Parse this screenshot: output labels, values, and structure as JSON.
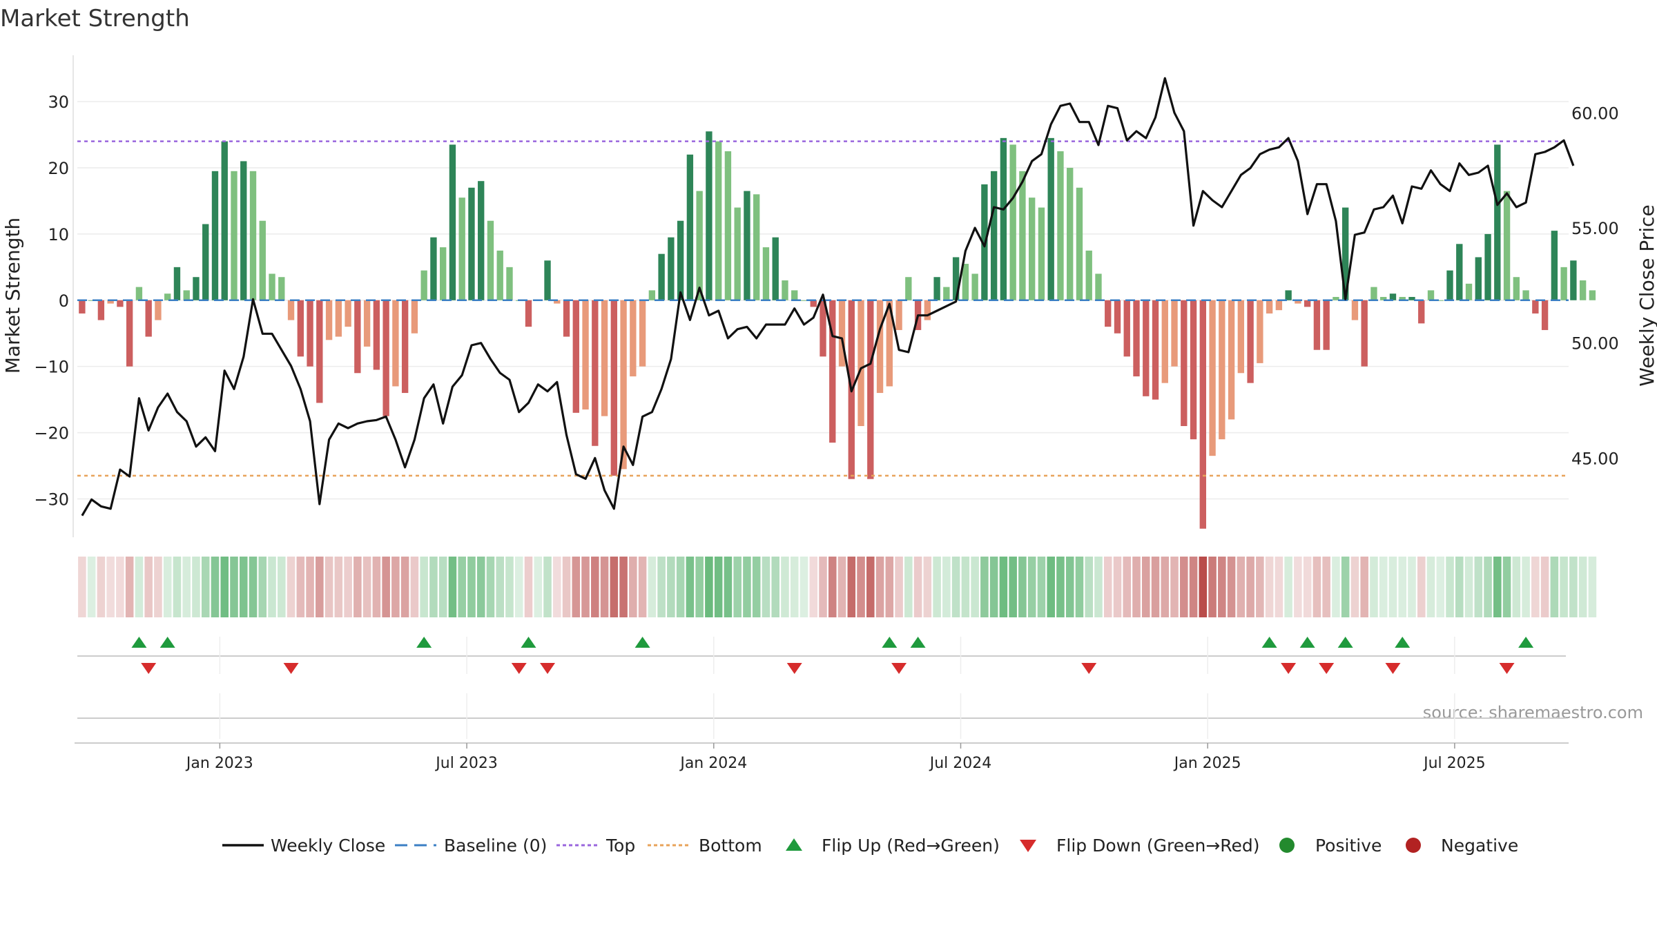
{
  "chart_data": {
    "type": "bar",
    "title": "Market Strength",
    "ylabel_left": "Market Strength",
    "ylabel_right": "Weekly Close Price",
    "left_ylim": [
      -36,
      37
    ],
    "right_ylim": [
      41.5,
      62.5
    ],
    "left_ticks": [
      30,
      20,
      10,
      0,
      -10,
      -20,
      -30
    ],
    "left_tick_labels": [
      "30",
      "20",
      "10",
      "0",
      "−10",
      "−20",
      "−30"
    ],
    "right_ticks": [
      60,
      55,
      50,
      45
    ],
    "right_tick_labels": [
      "60.00",
      "55.00",
      "50.00",
      "45.00"
    ],
    "x_tick_labels": [
      "Jan 2023",
      "Jul 2023",
      "Jan 2024",
      "Jul 2024",
      "Jan 2025",
      "Jul 2025"
    ],
    "x_tick_weeks": [
      14.5,
      40.5,
      66.5,
      92.5,
      118.5,
      144.5
    ],
    "top_level": 24,
    "bottom_level": -26.5,
    "weeks": 157,
    "strength": [
      -2,
      0,
      -3,
      -0.5,
      -1,
      -10,
      2,
      -5.5,
      -3,
      1,
      5,
      1.5,
      3.5,
      11.5,
      19.5,
      24,
      19.5,
      21,
      19.5,
      12,
      4,
      3.5,
      -3,
      -8.5,
      -10,
      -15.5,
      -6,
      -5.5,
      -4,
      -11,
      -7,
      -10.5,
      -17.5,
      -13,
      -14,
      -5,
      4.5,
      9.5,
      8,
      23.5,
      15.5,
      17,
      18,
      12,
      7.5,
      5,
      0,
      -4,
      0,
      6,
      -0.5,
      -5.5,
      -17,
      -16.5,
      -22,
      -17.5,
      -26.5,
      -25.5,
      -11.5,
      -10,
      1.5,
      7,
      9.5,
      12,
      22,
      16.5,
      25.5,
      24,
      22.5,
      14,
      16.5,
      16,
      8,
      9.5,
      3,
      1.5,
      0,
      -1,
      -8.5,
      -21.5,
      -10,
      -27,
      -19,
      -27,
      -14,
      -13,
      -4.5,
      3.5,
      -4.5,
      -3,
      3.5,
      2,
      6.5,
      5.5,
      4,
      17.5,
      19.5,
      24.5,
      23.5,
      19.5,
      15.5,
      14,
      24.5,
      22.5,
      20,
      17,
      7.5,
      4,
      -4,
      -5,
      -8.5,
      -11.5,
      -14.5,
      -15,
      -12.5,
      -10,
      -19,
      -21,
      -34.5,
      -23.5,
      -21,
      -18,
      -11,
      -12.5,
      -9.5,
      -2,
      -1.5,
      1.5,
      -0.5,
      -1,
      -7.5,
      -7.5,
      0.5,
      14,
      -3,
      -10,
      2,
      0.5,
      1,
      0.5,
      0.5,
      -3.5,
      1.5,
      0,
      4.5,
      8.5,
      2.5,
      6.5,
      10,
      23.5,
      16.5,
      3.5,
      1.5,
      -2,
      -4.5,
      10.5,
      5,
      6,
      3,
      1.5
    ],
    "close": [
      42.5,
      43.2,
      42.9,
      42.8,
      44.5,
      44.2,
      47.6,
      46.2,
      47.2,
      47.8,
      47.0,
      46.6,
      45.5,
      45.9,
      45.3,
      48.8,
      48.0,
      49.4,
      51.9,
      50.4,
      50.4,
      49.7,
      49.0,
      48.0,
      46.6,
      43.0,
      45.8,
      46.5,
      46.3,
      46.5,
      46.6,
      46.65,
      46.8,
      45.8,
      44.6,
      45.8,
      47.6,
      48.2,
      46.5,
      48.1,
      48.6,
      49.9,
      50.0,
      49.3,
      48.7,
      48.4,
      47.0,
      47.4,
      48.2,
      47.9,
      48.3,
      46.0,
      44.3,
      44.1,
      45.0,
      43.6,
      42.8,
      45.5,
      44.7,
      46.8,
      47.0,
      48.0,
      49.3,
      52.2,
      51.0,
      52.4,
      51.2,
      51.4,
      50.2,
      50.6,
      50.7,
      50.2,
      50.8,
      50.8,
      50.8,
      51.5,
      50.8,
      51.1,
      52.1,
      50.3,
      50.2,
      47.9,
      48.9,
      49.1,
      50.6,
      51.7,
      49.7,
      49.6,
      51.2,
      51.2,
      51.4,
      51.6,
      51.8,
      54.0,
      55.0,
      54.2,
      55.9,
      55.8,
      56.3,
      57.0,
      57.9,
      58.2,
      59.5,
      60.3,
      60.4,
      59.6,
      59.6,
      58.6,
      60.3,
      60.2,
      58.8,
      59.2,
      58.9,
      59.8,
      61.5,
      60.0,
      59.2,
      55.1,
      56.6,
      56.2,
      55.9,
      56.6,
      57.3,
      57.6,
      58.2,
      58.4,
      58.5,
      58.9,
      57.9,
      55.6,
      56.9,
      56.9,
      55.3,
      51.9,
      54.7,
      54.8,
      55.8,
      55.9,
      56.4,
      55.2,
      56.8,
      56.7,
      57.5,
      56.9,
      56.6,
      57.8,
      57.3,
      57.4,
      57.7,
      56.0,
      56.5,
      55.9,
      56.1,
      58.2,
      58.3,
      58.5,
      58.8,
      57.7
    ],
    "flip_up_weeks": [
      6,
      9,
      36,
      47,
      59,
      85,
      88,
      125,
      129,
      133,
      139,
      152
    ],
    "flip_down_weeks": [
      7,
      22,
      46,
      49,
      75,
      86,
      106,
      127,
      131,
      138,
      150
    ],
    "legend": [
      "Weekly Close",
      "Baseline (0)",
      "Top",
      "Bottom",
      "Flip Up (Red→Green)",
      "Flip Down (Green→Red)",
      "Positive",
      "Negative"
    ],
    "grid": true,
    "legend_position": "bottom-center"
  },
  "colors": {
    "pos_dark": "#2e8558",
    "pos_light": "#7fc07f",
    "neg_dark": "#cc5f5f",
    "neg_light": "#e89a7a",
    "close_line": "#111111",
    "baseline": "#3b7fc4",
    "top_line": "#9966dd",
    "bottom_line": "#e8a35a",
    "flip_up": "#1f9a3d",
    "flip_down": "#d62c2c",
    "positive_dot": "#238a2e",
    "negative_dot": "#b22222",
    "grid": "#ececec",
    "axis": "#dddddd",
    "text": "#222222",
    "source": "#999999"
  },
  "source_text": "source: sharemaestro.com"
}
